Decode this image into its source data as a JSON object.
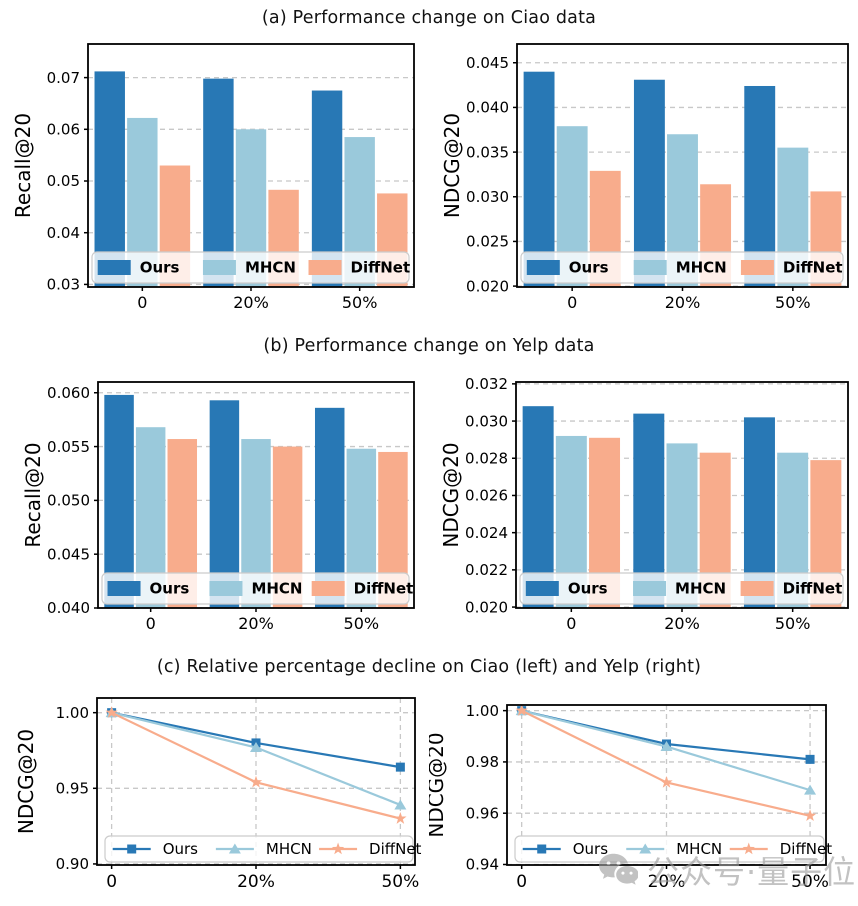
{
  "figure": {
    "panels": [
      {
        "label": "a",
        "title": "(a) Performance change on Ciao data"
      },
      {
        "label": "b",
        "title": "(b) Performance change on Yelp data"
      },
      {
        "label": "c",
        "title": "(c) Relative percentage decline on Ciao (left) and Yelp (right)"
      }
    ],
    "watermark": {
      "icon": "wechat-icon",
      "text": "公众号·量子位"
    }
  },
  "colors": {
    "ours": "#2878B5",
    "mhcn": "#9AC9DB",
    "diffnet": "#F8AC8C",
    "grid": "#C8C8C8",
    "spine": "#000000",
    "legend_border": "#CCCCCC",
    "legend_fill": "rgba(255,255,255,0.8)",
    "watermark": "#9D9D9D"
  },
  "chart_data": [
    {
      "id": "ciao-recall",
      "panel": "a",
      "type": "bar",
      "ylabel": "Recall@20",
      "categories": [
        "0",
        "20%",
        "50%"
      ],
      "series": [
        {
          "name": "Ours",
          "color_key": "ours",
          "values": [
            0.0712,
            0.0698,
            0.0675
          ]
        },
        {
          "name": "MHCN",
          "color_key": "mhcn",
          "values": [
            0.0622,
            0.06,
            0.0585
          ]
        },
        {
          "name": "DiffNet",
          "color_key": "diffnet",
          "values": [
            0.053,
            0.0483,
            0.0476
          ]
        }
      ],
      "ylim": [
        0.0295,
        0.0765
      ],
      "yticks": [
        0.03,
        0.04,
        0.05,
        0.06,
        0.07
      ],
      "ytick_labels": [
        "0.03",
        "0.04",
        "0.05",
        "0.06",
        "0.07"
      ],
      "grid": "horizontal",
      "legend_position": "bottom-inside",
      "legend_bold": true
    },
    {
      "id": "ciao-ndcg",
      "panel": "a",
      "type": "bar",
      "ylabel": "NDCG@20",
      "categories": [
        "0",
        "20%",
        "50%"
      ],
      "series": [
        {
          "name": "Ours",
          "color_key": "ours",
          "values": [
            0.044,
            0.0431,
            0.0424
          ]
        },
        {
          "name": "MHCN",
          "color_key": "mhcn",
          "values": [
            0.0379,
            0.037,
            0.0355
          ]
        },
        {
          "name": "DiffNet",
          "color_key": "diffnet",
          "values": [
            0.0329,
            0.0314,
            0.0306
          ]
        }
      ],
      "ylim": [
        0.0199,
        0.0471
      ],
      "yticks": [
        0.02,
        0.025,
        0.03,
        0.035,
        0.04,
        0.045
      ],
      "ytick_labels": [
        "0.020",
        "0.025",
        "0.030",
        "0.035",
        "0.040",
        "0.045"
      ],
      "grid": "horizontal",
      "legend_position": "bottom-inside",
      "legend_bold": true
    },
    {
      "id": "yelp-recall",
      "panel": "b",
      "type": "bar",
      "ylabel": "Recall@20",
      "categories": [
        "0",
        "20%",
        "50%"
      ],
      "series": [
        {
          "name": "Ours",
          "color_key": "ours",
          "values": [
            0.0598,
            0.0593,
            0.0586
          ]
        },
        {
          "name": "MHCN",
          "color_key": "mhcn",
          "values": [
            0.0568,
            0.0557,
            0.0548
          ]
        },
        {
          "name": "DiffNet",
          "color_key": "diffnet",
          "values": [
            0.0557,
            0.055,
            0.0545
          ]
        }
      ],
      "ylim": [
        0.04,
        0.061
      ],
      "yticks": [
        0.04,
        0.045,
        0.05,
        0.055,
        0.06
      ],
      "ytick_labels": [
        "0.040",
        "0.045",
        "0.050",
        "0.055",
        "0.060"
      ],
      "grid": "horizontal",
      "legend_position": "bottom-inside",
      "legend_bold": true
    },
    {
      "id": "yelp-ndcg",
      "panel": "b",
      "type": "bar",
      "ylabel": "NDCG@20",
      "categories": [
        "0",
        "20%",
        "50%"
      ],
      "series": [
        {
          "name": "Ours",
          "color_key": "ours",
          "values": [
            0.0308,
            0.0304,
            0.0302
          ]
        },
        {
          "name": "MHCN",
          "color_key": "mhcn",
          "values": [
            0.0292,
            0.0288,
            0.0283
          ]
        },
        {
          "name": "DiffNet",
          "color_key": "diffnet",
          "values": [
            0.0291,
            0.0283,
            0.0279
          ]
        }
      ],
      "ylim": [
        0.01995,
        0.0321
      ],
      "yticks": [
        0.02,
        0.022,
        0.024,
        0.026,
        0.028,
        0.03,
        0.032
      ],
      "ytick_labels": [
        "0.020",
        "0.022",
        "0.024",
        "0.026",
        "0.028",
        "0.030",
        "0.032"
      ],
      "grid": "horizontal",
      "legend_position": "bottom-inside",
      "legend_bold": true
    },
    {
      "id": "ciao-decline",
      "panel": "c",
      "type": "line",
      "ylabel": "NDCG@20",
      "categories": [
        "0",
        "20%",
        "50%"
      ],
      "series": [
        {
          "name": "Ours",
          "color_key": "ours",
          "marker": "square",
          "values": [
            1.0,
            0.98,
            0.964
          ]
        },
        {
          "name": "MHCN",
          "color_key": "mhcn",
          "marker": "triangle",
          "values": [
            1.0,
            0.977,
            0.939
          ]
        },
        {
          "name": "DiffNet",
          "color_key": "diffnet",
          "marker": "star",
          "values": [
            1.0,
            0.954,
            0.93
          ]
        }
      ],
      "ylim": [
        0.8993,
        1.0097
      ],
      "yticks": [
        0.9,
        0.95,
        1.0
      ],
      "ytick_labels": [
        "0.90",
        "0.95",
        "1.00"
      ],
      "grid": "both",
      "legend_position": "bottom-inside",
      "legend_bold": false
    },
    {
      "id": "yelp-decline",
      "panel": "c",
      "type": "line",
      "ylabel": "NDCG@20",
      "categories": [
        "0",
        "20%",
        "50%"
      ],
      "series": [
        {
          "name": "Ours",
          "color_key": "ours",
          "marker": "square",
          "values": [
            1.0,
            0.987,
            0.981
          ]
        },
        {
          "name": "MHCN",
          "color_key": "mhcn",
          "marker": "triangle",
          "values": [
            1.0,
            0.986,
            0.969
          ]
        },
        {
          "name": "DiffNet",
          "color_key": "diffnet",
          "marker": "star",
          "values": [
            1.0,
            0.972,
            0.959
          ]
        }
      ],
      "ylim": [
        0.9398,
        1.0022
      ],
      "yticks": [
        0.94,
        0.96,
        0.98,
        1.0
      ],
      "ytick_labels": [
        "0.94",
        "0.96",
        "0.98",
        "1.00"
      ],
      "grid": "both",
      "legend_position": "bottom-inside",
      "legend_bold": false
    }
  ]
}
